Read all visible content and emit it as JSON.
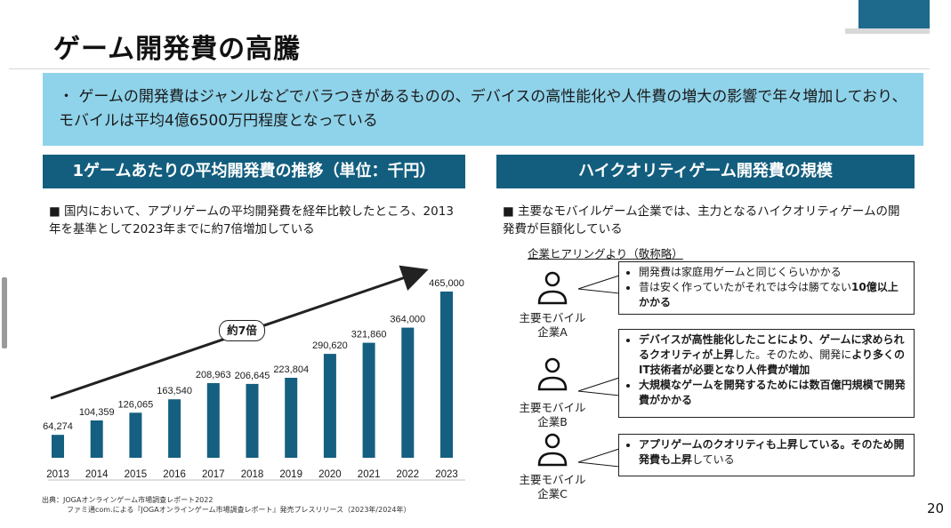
{
  "title": "ゲーム開発費の高騰",
  "summary": "・ ゲームの開発費はジャンルなどでバラつきがあるものの、デバイスの高性能化や人件費の増大の影響で年々増加しており、モバイルは平均4億6500万円程度となっている",
  "left": {
    "header": "1ゲームあたりの平均開発費の推移（単位：千円）",
    "bullet": "■ 国内において、アプリゲームの平均開発費を経年比較したところ、2013年を基準として2023年までに約7倍増加している",
    "arrow_label": "約7倍",
    "source_lines": [
      "出典：JOGAオンラインゲーム市場調査レポート2022",
      "ファミ通com.による『JOGAオンラインゲーム市場調査レポート』発売プレスリリース（2023年/2024年）"
    ]
  },
  "right": {
    "header": "ハイクオリティゲーム開発費の規模",
    "bullet": "■ 主要なモバイルゲーム企業では、主力となるハイクオリティゲームの開発費が巨額化している",
    "hearing_label": "企業ヒアリングより（敬称略）",
    "companies": [
      {
        "name_line1": "主要モバイル",
        "name_line2": "企業A"
      },
      {
        "name_line1": "主要モバイル",
        "name_line2": "企業B"
      },
      {
        "name_line1": "主要モバイル",
        "name_line2": "企業C"
      }
    ],
    "callouts": {
      "a": {
        "item1": "開発費は家庭用ゲームと同じくらいかかる",
        "item2_plain": "昔は安く作っていたがそれでは今は勝てない",
        "item2_bold": "10億以上かかる"
      },
      "b": {
        "item1_bold": "デバイスが高性能化したことにより、ゲームに求められるクオリティが上昇",
        "item1_plain": "した。そのため、開発に",
        "item1_bold2": "より多くのIT技術者が必要となり人件費が増加",
        "item2_bold": "大規模なゲームを開発するためには数百億円規模で開発費がかかる"
      },
      "c": {
        "item1_bold": "アプリゲームのクオリティも上昇している。そのため開発費も上昇",
        "item1_plain": "している"
      }
    }
  },
  "page_number": "20",
  "colors": {
    "header_bg": "#135e7e",
    "summary_bg": "#8fd3ea",
    "bar": "#155f80"
  },
  "chart_data": {
    "type": "bar",
    "categories": [
      "2013",
      "2014",
      "2015",
      "2016",
      "2017",
      "2018",
      "2019",
      "2020",
      "2021",
      "2022",
      "2023"
    ],
    "values": [
      64274,
      104359,
      126065,
      163540,
      208963,
      206645,
      223804,
      290620,
      321860,
      364000,
      465000
    ],
    "value_labels": [
      "64,274",
      "104,359",
      "126,065",
      "163,540",
      "208,963",
      "206,645",
      "223,804",
      "290,620",
      "321,860",
      "364,000",
      "465,000"
    ],
    "ylim": [
      0,
      465000
    ]
  }
}
